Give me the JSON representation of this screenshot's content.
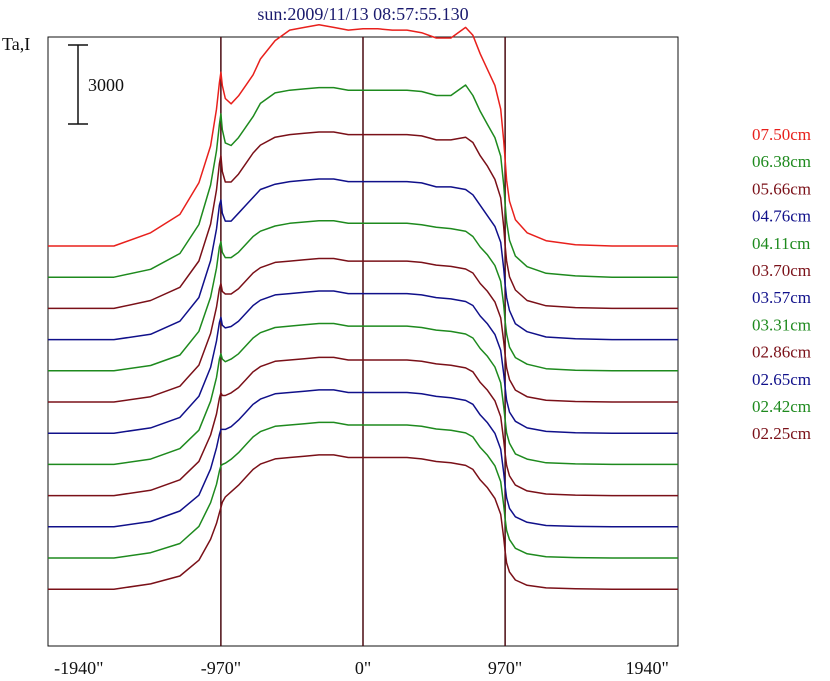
{
  "chart_data": {
    "type": "line",
    "title": "sun:2009/11/13 08:57:55.130",
    "ylabel": "Ta,I",
    "scale_bar_label": "3000",
    "scale_bar_value": 3000,
    "xlim": [
      -2150,
      2150
    ],
    "x_ticks": [
      {
        "value": -1940,
        "label": "-1940\""
      },
      {
        "value": -970,
        "label": "-970\""
      },
      {
        "value": 0,
        "label": "0\""
      },
      {
        "value": 970,
        "label": "970\""
      },
      {
        "value": 1940,
        "label": "1940\""
      }
    ],
    "reference_lines_x": [
      -970,
      0,
      970
    ],
    "x": [
      -2150,
      -1700,
      -1450,
      -1250,
      -1120,
      -1040,
      -1000,
      -980,
      -970,
      -960,
      -940,
      -900,
      -850,
      -800,
      -750,
      -700,
      -600,
      -500,
      -400,
      -300,
      -200,
      -100,
      0,
      100,
      200,
      300,
      400,
      500,
      600,
      700,
      750,
      800,
      850,
      900,
      940,
      960,
      970,
      980,
      1000,
      1040,
      1120,
      1250,
      1450,
      1700,
      2150
    ],
    "series": [
      {
        "name": "07.50cm",
        "color": "#e8201c",
        "values": [
          0,
          0,
          500,
          1200,
          2400,
          3800,
          5200,
          6200,
          6600,
          6100,
          5600,
          5400,
          5700,
          6100,
          6500,
          7100,
          7800,
          8200,
          8300,
          8400,
          8300,
          8200,
          8250,
          8250,
          8200,
          8200,
          8100,
          7900,
          7900,
          8300,
          8000,
          7300,
          6700,
          6100,
          5200,
          4000,
          3300,
          2500,
          1700,
          1000,
          500,
          200,
          50,
          0,
          0
        ]
      },
      {
        "name": "06.38cm",
        "color": "#1e8a1e",
        "values": [
          0,
          0,
          300,
          900,
          2000,
          3500,
          4800,
          5800,
          6200,
          5600,
          5100,
          5000,
          5300,
          5700,
          6100,
          6600,
          7000,
          7100,
          7150,
          7200,
          7200,
          7100,
          7100,
          7100,
          7100,
          7100,
          7050,
          6900,
          6900,
          7300,
          6900,
          6300,
          5800,
          5300,
          4600,
          3500,
          2800,
          2100,
          1400,
          800,
          400,
          150,
          50,
          0,
          0
        ]
      },
      {
        "name": "05.66cm",
        "color": "#7a1018",
        "values": [
          0,
          0,
          300,
          800,
          1800,
          3200,
          4500,
          5500,
          5800,
          5200,
          4800,
          4800,
          5100,
          5500,
          5900,
          6200,
          6500,
          6600,
          6650,
          6700,
          6700,
          6600,
          6600,
          6600,
          6600,
          6600,
          6550,
          6400,
          6400,
          6500,
          6300,
          5800,
          5400,
          4900,
          4200,
          3100,
          2400,
          1800,
          1200,
          700,
          300,
          100,
          30,
          0,
          0
        ]
      },
      {
        "name": "04.76cm",
        "color": "#10108a",
        "values": [
          0,
          0,
          200,
          700,
          1600,
          3000,
          4200,
          5100,
          5300,
          4800,
          4500,
          4500,
          4800,
          5100,
          5400,
          5700,
          5900,
          6000,
          6050,
          6100,
          6100,
          6000,
          6000,
          6000,
          6000,
          6000,
          5950,
          5800,
          5800,
          5700,
          5500,
          5100,
          4700,
          4300,
          3700,
          2700,
          2100,
          1600,
          1100,
          600,
          300,
          100,
          30,
          0,
          0
        ]
      },
      {
        "name": "04.11cm",
        "color": "#1e8a1e",
        "values": [
          0,
          0,
          200,
          600,
          1500,
          2800,
          3900,
          4700,
          4900,
          4500,
          4300,
          4300,
          4500,
          4800,
          5100,
          5300,
          5500,
          5600,
          5650,
          5700,
          5700,
          5600,
          5600,
          5600,
          5600,
          5600,
          5550,
          5450,
          5400,
          5300,
          5100,
          4700,
          4400,
          4000,
          3400,
          2500,
          1900,
          1400,
          900,
          500,
          250,
          80,
          20,
          0,
          0
        ]
      },
      {
        "name": "03.70cm",
        "color": "#7a1018",
        "values": [
          0,
          0,
          200,
          600,
          1400,
          2600,
          3600,
          4300,
          4500,
          4200,
          4100,
          4100,
          4300,
          4600,
          4900,
          5100,
          5300,
          5350,
          5400,
          5450,
          5450,
          5350,
          5350,
          5350,
          5350,
          5350,
          5300,
          5200,
          5150,
          5050,
          4900,
          4500,
          4200,
          3800,
          3200,
          2300,
          1800,
          1300,
          850,
          450,
          200,
          70,
          20,
          0,
          0
        ]
      },
      {
        "name": "03.57cm",
        "color": "#10108a",
        "values": [
          0,
          0,
          200,
          600,
          1400,
          2500,
          3500,
          4200,
          4400,
          4100,
          4000,
          4050,
          4250,
          4550,
          4850,
          5050,
          5250,
          5300,
          5350,
          5400,
          5400,
          5300,
          5300,
          5300,
          5300,
          5300,
          5250,
          5150,
          5100,
          5000,
          4850,
          4450,
          4150,
          3750,
          3150,
          2250,
          1750,
          1250,
          800,
          450,
          200,
          70,
          20,
          0,
          0
        ]
      },
      {
        "name": "03.31cm",
        "color": "#1e8a1e",
        "values": [
          0,
          0,
          200,
          600,
          1300,
          2400,
          3300,
          4000,
          4200,
          4000,
          3900,
          4000,
          4200,
          4500,
          4800,
          5000,
          5200,
          5250,
          5300,
          5350,
          5350,
          5250,
          5250,
          5250,
          5250,
          5250,
          5200,
          5100,
          5050,
          4950,
          4800,
          4400,
          4100,
          3700,
          3100,
          2200,
          1700,
          1200,
          800,
          400,
          200,
          60,
          20,
          0,
          0
        ]
      },
      {
        "name": "02.86cm",
        "color": "#7a1018",
        "values": [
          0,
          0,
          200,
          600,
          1300,
          2300,
          3100,
          3700,
          3900,
          3800,
          3800,
          3900,
          4100,
          4400,
          4700,
          4900,
          5100,
          5150,
          5200,
          5250,
          5250,
          5150,
          5150,
          5150,
          5150,
          5150,
          5100,
          5000,
          4950,
          4850,
          4700,
          4300,
          4000,
          3600,
          3000,
          2100,
          1600,
          1150,
          750,
          400,
          180,
          60,
          20,
          0,
          0
        ]
      },
      {
        "name": "02.65cm",
        "color": "#10108a",
        "values": [
          0,
          0,
          200,
          600,
          1200,
          2200,
          3000,
          3500,
          3700,
          3700,
          3700,
          3800,
          4050,
          4350,
          4650,
          4850,
          5050,
          5100,
          5150,
          5200,
          5200,
          5100,
          5100,
          5100,
          5100,
          5100,
          5050,
          4950,
          4900,
          4800,
          4650,
          4250,
          3950,
          3550,
          2950,
          2050,
          1550,
          1100,
          700,
          380,
          170,
          50,
          15,
          0,
          0
        ]
      },
      {
        "name": "02.42cm",
        "color": "#1e8a1e",
        "values": [
          0,
          0,
          200,
          550,
          1200,
          2100,
          2800,
          3300,
          3500,
          3550,
          3600,
          3750,
          4000,
          4300,
          4600,
          4800,
          5000,
          5050,
          5100,
          5150,
          5150,
          5050,
          5050,
          5050,
          5050,
          5050,
          5000,
          4900,
          4850,
          4750,
          4600,
          4200,
          3900,
          3500,
          2900,
          2000,
          1500,
          1050,
          700,
          370,
          160,
          50,
          15,
          0,
          0
        ]
      },
      {
        "name": "02.25cm",
        "color": "#7a1018",
        "values": [
          0,
          0,
          200,
          500,
          1100,
          1900,
          2500,
          2900,
          3100,
          3300,
          3500,
          3700,
          3950,
          4250,
          4550,
          4750,
          4950,
          5000,
          5050,
          5100,
          5100,
          5000,
          5000,
          5000,
          5000,
          5000,
          4950,
          4850,
          4800,
          4700,
          4550,
          4150,
          3850,
          3450,
          2850,
          1950,
          1450,
          1000,
          650,
          350,
          150,
          50,
          15,
          0,
          0
        ]
      }
    ],
    "grid": false,
    "legend_placement": "right"
  }
}
